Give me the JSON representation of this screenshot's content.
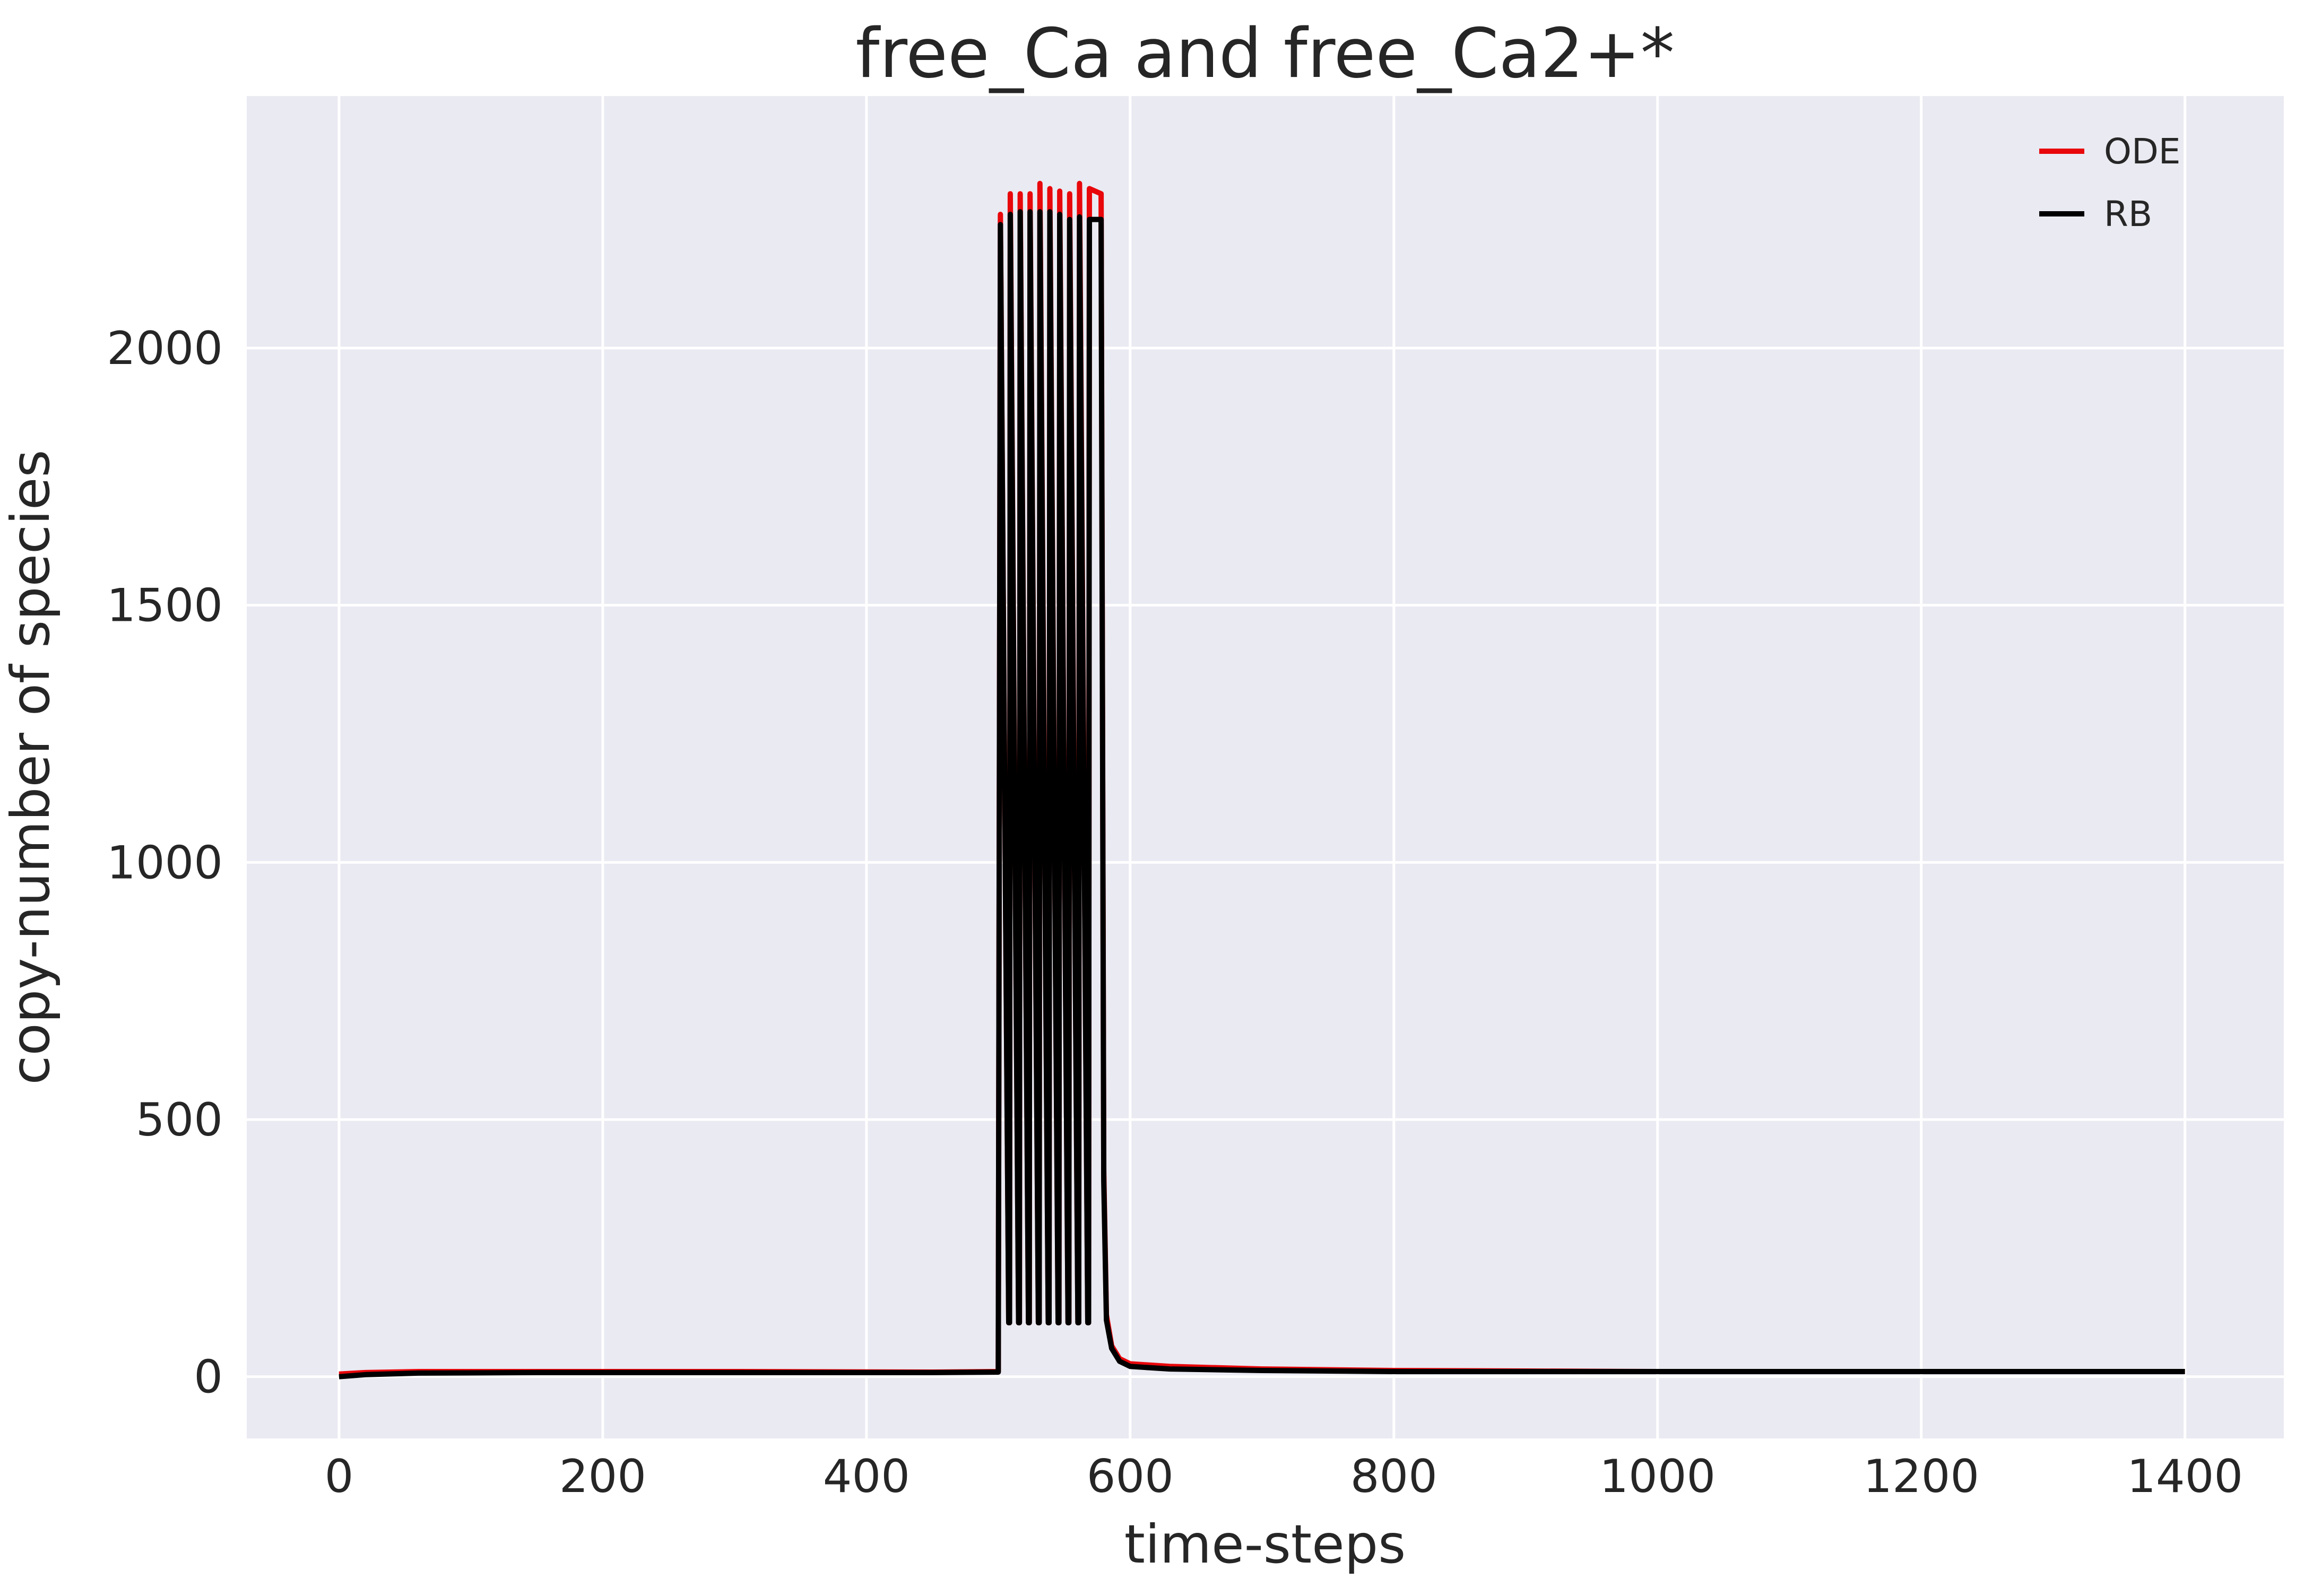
{
  "chart_data": {
    "type": "line",
    "title": "free_Ca and free_Ca2+*",
    "xlabel": "time-steps",
    "ylabel": "copy-number of species",
    "xlim": [
      -70,
      1475
    ],
    "ylim": [
      -120,
      2490
    ],
    "xticks": [
      0,
      200,
      400,
      600,
      800,
      1000,
      1200,
      1400
    ],
    "yticks": [
      0,
      500,
      1000,
      1500,
      2000
    ],
    "xtick_labels": [
      "0",
      "200",
      "400",
      "600",
      "800",
      "1000",
      "1200",
      "1400"
    ],
    "ytick_labels": [
      "0",
      "500",
      "1000",
      "1500",
      "2000"
    ],
    "grid": true,
    "legend_position": "top-right",
    "background_color": "#eaeaf2",
    "grid_color": "#ffffff",
    "series": [
      {
        "name": "ODE",
        "color": "#e8070b",
        "baseline": [
          [
            0,
            5
          ],
          [
            20,
            8
          ],
          [
            60,
            10
          ],
          [
            150,
            10
          ],
          [
            300,
            10
          ],
          [
            450,
            9
          ],
          [
            500,
            10
          ]
        ],
        "burst": {
          "start": 501,
          "pulses": 10,
          "period": 7.5,
          "trough": 105,
          "peaks": [
            2260,
            2300,
            2300,
            2300,
            2320,
            2310,
            2305,
            2300,
            2320,
            2310
          ]
        },
        "decay": [
          [
            578,
            2300
          ],
          [
            580,
            400
          ],
          [
            582,
            120
          ],
          [
            586,
            60
          ],
          [
            592,
            35
          ],
          [
            600,
            25
          ],
          [
            630,
            20
          ],
          [
            700,
            15
          ],
          [
            800,
            12
          ],
          [
            900,
            11
          ],
          [
            1000,
            10
          ],
          [
            1200,
            10
          ],
          [
            1400,
            10
          ]
        ]
      },
      {
        "name": "RB",
        "color": "#000000",
        "baseline": [
          [
            0,
            0
          ],
          [
            20,
            4
          ],
          [
            60,
            7
          ],
          [
            150,
            8
          ],
          [
            300,
            8
          ],
          [
            450,
            8
          ],
          [
            500,
            9
          ]
        ],
        "burst": {
          "start": 501,
          "pulses": 10,
          "period": 7.5,
          "trough": 105,
          "peaks": [
            2240,
            2260,
            2265,
            2265,
            2265,
            2265,
            2260,
            2250,
            2255,
            2250
          ]
        },
        "decay": [
          [
            578,
            2250
          ],
          [
            580,
            380
          ],
          [
            582,
            110
          ],
          [
            586,
            55
          ],
          [
            592,
            30
          ],
          [
            600,
            20
          ],
          [
            630,
            15
          ],
          [
            700,
            12
          ],
          [
            800,
            10
          ],
          [
            900,
            10
          ],
          [
            1000,
            10
          ],
          [
            1200,
            10
          ],
          [
            1400,
            10
          ]
        ]
      }
    ]
  }
}
